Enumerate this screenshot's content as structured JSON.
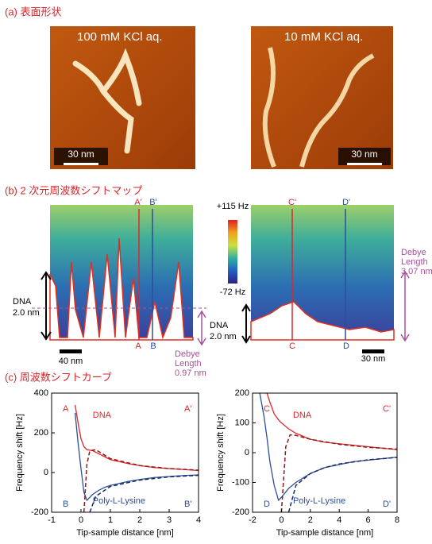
{
  "section_a": {
    "title": "(a) 表面形状",
    "images": [
      {
        "label": "100 mM KCl aq.",
        "scale": "30 nm"
      },
      {
        "label": "10 mM KCl aq.",
        "scale": "30 nm"
      }
    ]
  },
  "section_b": {
    "title": "(b) 2 次元周波数シフトマップ",
    "colorbar": {
      "max": "+115 Hz",
      "min": "-72 Hz"
    },
    "maps": [
      {
        "markers_top": [
          "A'",
          "B'"
        ],
        "markers_bottom": [
          "A",
          "B"
        ],
        "height_label": [
          "DNA",
          "2.0 nm"
        ],
        "scale": "40 nm",
        "debye": [
          "Debye",
          "Length",
          "0.97 nm"
        ]
      },
      {
        "markers_top": [
          "C'",
          "D'"
        ],
        "markers_bottom": [
          "C",
          "D"
        ],
        "height_label": [
          "DNA",
          "2.0 nm"
        ],
        "scale": "30 nm",
        "debye": [
          "Debye",
          "Length",
          "3.07 nm"
        ]
      }
    ]
  },
  "section_c": {
    "title": "(c) 周波数シフトカーブ"
  },
  "chart_data": [
    {
      "type": "line",
      "y_label": "Frequency shift [Hz]",
      "x_label": "Tip-sample distance [nm]",
      "xlim": [
        -1,
        4
      ],
      "xticks": [
        -1,
        0,
        1,
        2,
        3,
        4
      ],
      "ylim": [
        -200,
        400
      ],
      "yticks": [
        -200,
        0,
        200,
        400
      ],
      "corner_labels": [
        "A",
        "A'",
        "B",
        "B'"
      ],
      "series": [
        {
          "name": "DNA",
          "color": "#e0262b",
          "x": [
            -0.2,
            -0.1,
            0,
            0.1,
            0.2,
            0.4,
            0.6,
            0.8,
            1.0,
            1.3,
            1.6,
            2.0,
            2.5,
            3.0,
            3.5,
            4.0
          ],
          "values": [
            340,
            250,
            170,
            130,
            115,
            110,
            95,
            80,
            65,
            55,
            45,
            35,
            25,
            20,
            15,
            10
          ]
        },
        {
          "name": "Poly-L-Lysine",
          "color": "#2b4f9e",
          "x": [
            -0.2,
            -0.1,
            0,
            0.1,
            0.2,
            0.4,
            0.6,
            0.8,
            1.0,
            1.3,
            1.6,
            2.0,
            2.5,
            3.0,
            3.5,
            4.0
          ],
          "values": [
            300,
            150,
            20,
            -100,
            -140,
            -110,
            -90,
            -75,
            -65,
            -55,
            -45,
            -35,
            -25,
            -20,
            -15,
            -12
          ]
        },
        {
          "color": "#8b1a1a",
          "dashed": true,
          "x": [
            0.1,
            0.2,
            0.3,
            0.5,
            1.0,
            2.0,
            3.0,
            4.0
          ],
          "values": [
            -200,
            40,
            110,
            115,
            70,
            35,
            20,
            12
          ]
        },
        {
          "color": "#1a2a5a",
          "dashed": true,
          "x": [
            0.3,
            0.5,
            1.0,
            2.0,
            3.0,
            4.0
          ],
          "values": [
            -200,
            -120,
            -70,
            -38,
            -22,
            -14
          ]
        }
      ]
    },
    {
      "type": "line",
      "y_label": "Frequency shift [Hz]",
      "x_label": "Tip-sample distance [nm]",
      "xlim": [
        -2,
        8
      ],
      "xticks": [
        -2,
        0,
        2,
        4,
        6,
        8
      ],
      "ylim": [
        -200,
        200
      ],
      "yticks": [
        -200,
        -100,
        0,
        100,
        200
      ],
      "corner_labels": [
        "C",
        "C'",
        "D",
        "D'"
      ],
      "series": [
        {
          "name": "DNA",
          "color": "#e0262b",
          "x": [
            -1.0,
            -0.8,
            -0.5,
            -0.2,
            0,
            0.5,
            1,
            2,
            3,
            4,
            5,
            6,
            7,
            8
          ],
          "values": [
            200,
            170,
            130,
            110,
            100,
            80,
            65,
            45,
            35,
            30,
            25,
            20,
            15,
            10
          ]
        },
        {
          "name": "Poly-L-Lysine",
          "color": "#2b4f9e",
          "x": [
            -1.5,
            -1.2,
            -1.0,
            -0.8,
            -0.5,
            -0.2,
            0,
            0.5,
            1,
            2,
            3,
            4,
            5,
            6,
            7,
            8
          ],
          "values": [
            200,
            120,
            50,
            -30,
            -110,
            -160,
            -150,
            -120,
            -100,
            -70,
            -50,
            -40,
            -30,
            -25,
            -20,
            -15
          ]
        },
        {
          "color": "#8b1a1a",
          "dashed": true,
          "x": [
            0,
            0.3,
            0.6,
            1,
            2,
            4,
            6,
            8
          ],
          "values": [
            -200,
            20,
            60,
            58,
            45,
            28,
            18,
            12
          ]
        },
        {
          "color": "#1a2a5a",
          "dashed": true,
          "x": [
            0.5,
            1,
            2,
            3,
            4,
            6,
            8
          ],
          "values": [
            -200,
            -110,
            -70,
            -50,
            -38,
            -24,
            -16
          ]
        }
      ]
    }
  ]
}
